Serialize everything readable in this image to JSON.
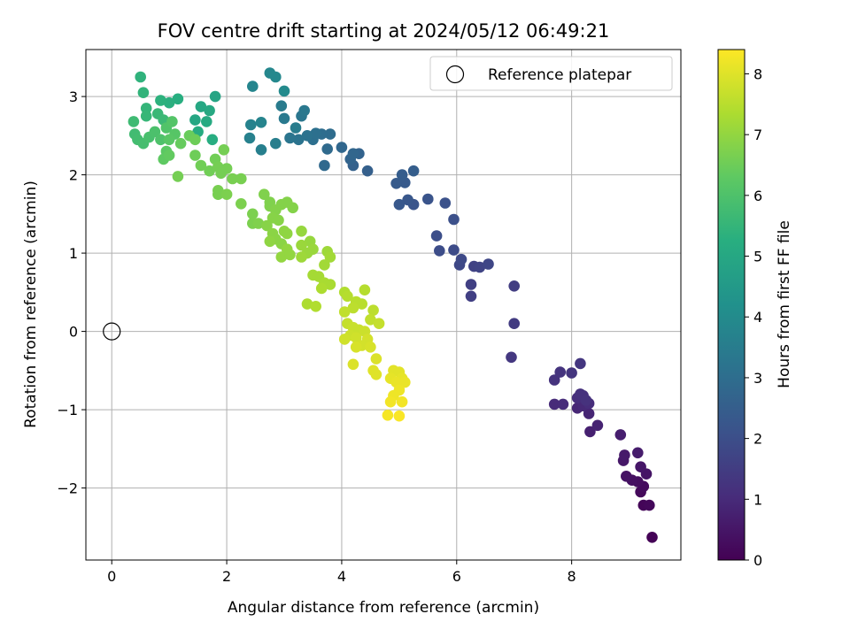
{
  "chart_data": {
    "type": "scatter",
    "title": "FOV centre drift starting at 2024/05/12 06:49:21",
    "xlabel": "Angular distance from reference (arcmin)",
    "ylabel": "Rotation from reference (arcmin)",
    "xlim": [
      -0.45,
      9.9
    ],
    "ylim": [
      -2.92,
      3.6
    ],
    "xticks": [
      0,
      2,
      4,
      6,
      8
    ],
    "yticks": [
      -2,
      -1,
      0,
      1,
      2,
      3
    ],
    "xtick_labels": [
      "0",
      "2",
      "4",
      "6",
      "8"
    ],
    "ytick_labels": [
      "−2",
      "−1",
      "0",
      "1",
      "2",
      "3"
    ],
    "grid": true,
    "legend": {
      "placement": "top-right",
      "entries": [
        {
          "label": "Reference platepar",
          "marker": "open-circle"
        }
      ]
    },
    "reference_point": {
      "x": 0,
      "y": 0,
      "label": "Reference platepar"
    },
    "colorbar": {
      "label": "Hours from first FF file",
      "colormap": "viridis",
      "range": [
        0,
        8.4
      ],
      "ticks": [
        0,
        1,
        2,
        3,
        4,
        5,
        6,
        7,
        8
      ],
      "tick_labels": [
        "0",
        "1",
        "2",
        "3",
        "4",
        "5",
        "6",
        "7",
        "8"
      ]
    },
    "series": [
      {
        "points": [
          [
            9.4,
            -2.63,
            0.05
          ],
          [
            9.25,
            -2.22,
            0.1
          ],
          [
            9.35,
            -2.22,
            0.15
          ],
          [
            9.2,
            -2.05,
            0.2
          ],
          [
            9.25,
            -1.98,
            0.25
          ],
          [
            9.15,
            -1.92,
            0.3
          ],
          [
            9.05,
            -1.9,
            0.35
          ],
          [
            8.95,
            -1.85,
            0.4
          ],
          [
            9.3,
            -1.82,
            0.45
          ],
          [
            9.2,
            -1.73,
            0.5
          ],
          [
            8.9,
            -1.65,
            0.55
          ],
          [
            8.92,
            -1.58,
            0.6
          ],
          [
            9.15,
            -1.55,
            0.65
          ],
          [
            8.85,
            -1.32,
            0.7
          ],
          [
            8.32,
            -1.28,
            0.75
          ],
          [
            8.45,
            -1.2,
            0.8
          ],
          [
            8.3,
            -1.05,
            0.85
          ],
          [
            8.1,
            -0.98,
            0.9
          ],
          [
            8.2,
            -0.95,
            0.95
          ],
          [
            7.7,
            -0.93,
            1.0
          ],
          [
            7.85,
            -0.93,
            1.03
          ],
          [
            8.3,
            -0.92,
            1.06
          ],
          [
            8.1,
            -0.85,
            1.09
          ],
          [
            8.2,
            -0.82,
            1.12
          ],
          [
            8.15,
            -0.8,
            1.15
          ],
          [
            8.25,
            -0.88,
            1.18
          ],
          [
            7.7,
            -0.62,
            1.21
          ],
          [
            7.8,
            -0.52,
            1.24
          ],
          [
            8.0,
            -0.53,
            1.27
          ],
          [
            8.15,
            -0.41,
            1.3
          ],
          [
            6.95,
            -0.33,
            1.35
          ],
          [
            7.0,
            0.1,
            1.45
          ],
          [
            7.0,
            0.58,
            1.5
          ],
          [
            6.25,
            0.45,
            1.55
          ],
          [
            6.25,
            0.6,
            1.6
          ],
          [
            6.3,
            0.83,
            1.65
          ],
          [
            6.4,
            0.82,
            1.7
          ],
          [
            6.55,
            0.86,
            1.75
          ],
          [
            6.05,
            0.85,
            1.8
          ],
          [
            6.08,
            0.92,
            1.85
          ],
          [
            5.95,
            1.04,
            1.9
          ],
          [
            5.7,
            1.03,
            1.95
          ],
          [
            5.65,
            1.22,
            2.0
          ],
          [
            5.95,
            1.43,
            2.05
          ],
          [
            5.8,
            1.64,
            2.1
          ],
          [
            5.5,
            1.69,
            2.15
          ],
          [
            5.25,
            1.62,
            2.2
          ],
          [
            5.15,
            1.68,
            2.25
          ],
          [
            5.0,
            1.62,
            2.3
          ],
          [
            5.1,
            1.9,
            2.35
          ],
          [
            4.95,
            1.89,
            2.4
          ],
          [
            5.05,
            2.0,
            2.45
          ],
          [
            5.25,
            2.05,
            2.5
          ],
          [
            4.45,
            2.05,
            2.55
          ],
          [
            4.2,
            2.12,
            2.6
          ],
          [
            4.3,
            2.27,
            2.65
          ],
          [
            4.15,
            2.2,
            2.7
          ],
          [
            4.2,
            2.27,
            2.75
          ],
          [
            4.0,
            2.35,
            2.8
          ],
          [
            3.7,
            2.12,
            2.85
          ],
          [
            3.75,
            2.33,
            2.9
          ],
          [
            3.8,
            2.52,
            2.95
          ],
          [
            3.65,
            2.52,
            3.0
          ],
          [
            3.5,
            2.45,
            3.05
          ],
          [
            3.55,
            2.53,
            3.1
          ],
          [
            3.4,
            2.5,
            3.15
          ],
          [
            3.25,
            2.45,
            3.2
          ],
          [
            3.1,
            2.47,
            3.25
          ],
          [
            3.3,
            2.75,
            3.3
          ],
          [
            3.35,
            2.82,
            3.35
          ],
          [
            3.0,
            2.72,
            3.4
          ],
          [
            2.95,
            2.88,
            3.45
          ],
          [
            3.2,
            2.6,
            3.5
          ],
          [
            2.85,
            2.4,
            3.55
          ],
          [
            2.6,
            2.32,
            3.6
          ],
          [
            2.4,
            2.47,
            3.65
          ],
          [
            2.42,
            2.64,
            3.7
          ],
          [
            2.6,
            2.67,
            3.75
          ],
          [
            2.45,
            3.13,
            3.8
          ],
          [
            2.75,
            3.3,
            3.85
          ],
          [
            2.85,
            3.25,
            3.9
          ],
          [
            3.0,
            3.07,
            3.95
          ],
          [
            1.8,
            3.0,
            4.9
          ],
          [
            1.45,
            2.7,
            4.95
          ],
          [
            1.55,
            2.87,
            5.0
          ],
          [
            1.7,
            2.82,
            5.05
          ],
          [
            1.65,
            2.68,
            5.1
          ],
          [
            1.5,
            2.55,
            5.15
          ],
          [
            1.75,
            2.45,
            5.2
          ],
          [
            1.15,
            2.97,
            5.25
          ],
          [
            1.0,
            2.92,
            5.3
          ],
          [
            0.85,
            2.95,
            5.35
          ],
          [
            0.5,
            3.25,
            5.4
          ],
          [
            0.55,
            3.05,
            5.45
          ],
          [
            0.6,
            2.85,
            5.5
          ],
          [
            0.6,
            2.75,
            5.55
          ],
          [
            0.8,
            2.78,
            5.6
          ],
          [
            0.9,
            2.7,
            5.65
          ],
          [
            0.38,
            2.68,
            5.7
          ],
          [
            0.4,
            2.52,
            5.75
          ],
          [
            0.45,
            2.45,
            5.8
          ],
          [
            0.55,
            2.4,
            5.85
          ],
          [
            0.65,
            2.48,
            5.9
          ],
          [
            0.75,
            2.55,
            5.95
          ],
          [
            0.85,
            2.45,
            6.0
          ],
          [
            0.95,
            2.6,
            6.05
          ],
          [
            1.05,
            2.68,
            6.1
          ],
          [
            1.1,
            2.52,
            6.15
          ],
          [
            1.0,
            2.45,
            6.2
          ],
          [
            0.95,
            2.3,
            6.25
          ],
          [
            0.9,
            2.2,
            6.3
          ],
          [
            1.0,
            2.25,
            6.35
          ],
          [
            1.2,
            2.4,
            6.4
          ],
          [
            1.35,
            2.5,
            6.45
          ],
          [
            1.45,
            2.45,
            6.5
          ],
          [
            1.45,
            2.25,
            6.5
          ],
          [
            1.55,
            2.12,
            6.55
          ],
          [
            1.7,
            2.05,
            6.55
          ],
          [
            1.8,
            2.2,
            6.55
          ],
          [
            1.85,
            2.1,
            6.6
          ],
          [
            1.95,
            2.32,
            6.6
          ],
          [
            2.0,
            2.08,
            6.6
          ],
          [
            1.9,
            2.02,
            6.6
          ],
          [
            1.15,
            1.98,
            6.6
          ],
          [
            2.1,
            1.95,
            6.65
          ],
          [
            2.25,
            1.95,
            6.65
          ],
          [
            1.85,
            1.8,
            6.65
          ],
          [
            1.85,
            1.75,
            6.65
          ],
          [
            2.0,
            1.75,
            6.7
          ],
          [
            2.25,
            1.63,
            6.7
          ],
          [
            2.45,
            1.5,
            6.7
          ],
          [
            2.45,
            1.38,
            6.7
          ],
          [
            2.55,
            1.38,
            6.75
          ],
          [
            2.65,
            1.75,
            6.75
          ],
          [
            2.75,
            1.65,
            6.75
          ],
          [
            2.75,
            1.6,
            6.75
          ],
          [
            2.85,
            1.55,
            6.8
          ],
          [
            2.95,
            1.62,
            6.8
          ],
          [
            3.05,
            1.65,
            6.8
          ],
          [
            3.15,
            1.58,
            6.8
          ],
          [
            2.8,
            1.45,
            6.85
          ],
          [
            2.9,
            1.42,
            6.85
          ],
          [
            2.7,
            1.35,
            6.85
          ],
          [
            2.8,
            1.25,
            6.9
          ],
          [
            2.85,
            1.18,
            6.9
          ],
          [
            2.95,
            1.12,
            6.9
          ],
          [
            3.0,
            1.28,
            6.95
          ],
          [
            3.05,
            1.25,
            6.95
          ],
          [
            2.75,
            1.15,
            6.95
          ],
          [
            3.05,
            1.05,
            7.0
          ],
          [
            2.95,
            0.95,
            7.0
          ],
          [
            3.1,
            0.98,
            7.0
          ],
          [
            3.3,
            1.28,
            7.05
          ],
          [
            3.45,
            1.15,
            7.05
          ],
          [
            3.3,
            1.1,
            7.1
          ],
          [
            3.5,
            1.05,
            7.1
          ],
          [
            3.4,
            1.0,
            7.1
          ],
          [
            3.3,
            0.95,
            7.15
          ],
          [
            3.75,
            1.02,
            7.15
          ],
          [
            3.8,
            0.95,
            7.2
          ],
          [
            3.7,
            0.85,
            7.2
          ],
          [
            3.5,
            0.72,
            7.25
          ],
          [
            3.6,
            0.7,
            7.25
          ],
          [
            3.7,
            0.62,
            7.3
          ],
          [
            3.8,
            0.6,
            7.3
          ],
          [
            3.65,
            0.55,
            7.35
          ],
          [
            3.4,
            0.35,
            7.35
          ],
          [
            3.55,
            0.32,
            7.4
          ],
          [
            4.05,
            0.5,
            7.4
          ],
          [
            4.1,
            0.45,
            7.45
          ],
          [
            4.4,
            0.53,
            7.45
          ],
          [
            4.25,
            0.38,
            7.5
          ],
          [
            4.35,
            0.35,
            7.5
          ],
          [
            4.2,
            0.3,
            7.55
          ],
          [
            4.55,
            0.27,
            7.55
          ],
          [
            4.05,
            0.25,
            7.6
          ],
          [
            4.5,
            0.15,
            7.6
          ],
          [
            4.65,
            0.1,
            7.65
          ],
          [
            4.1,
            0.1,
            7.65
          ],
          [
            4.2,
            0.05,
            7.7
          ],
          [
            4.3,
            0.02,
            7.7
          ],
          [
            4.4,
            0.0,
            7.75
          ],
          [
            4.15,
            -0.05,
            7.75
          ],
          [
            4.25,
            -0.08,
            7.8
          ],
          [
            4.05,
            -0.1,
            7.8
          ],
          [
            4.45,
            -0.1,
            7.85
          ],
          [
            4.35,
            -0.18,
            7.85
          ],
          [
            4.5,
            -0.2,
            7.9
          ],
          [
            4.25,
            -0.2,
            7.9
          ],
          [
            4.6,
            -0.35,
            7.95
          ],
          [
            4.2,
            -0.42,
            7.95
          ],
          [
            4.55,
            -0.5,
            8.0
          ],
          [
            4.6,
            -0.55,
            8.0
          ],
          [
            4.9,
            -0.5,
            8.05
          ],
          [
            5.0,
            -0.52,
            8.05
          ],
          [
            4.85,
            -0.6,
            8.1
          ],
          [
            5.05,
            -0.6,
            8.1
          ],
          [
            4.95,
            -0.65,
            8.15
          ],
          [
            5.1,
            -0.65,
            8.15
          ],
          [
            5.0,
            -0.75,
            8.2
          ],
          [
            4.9,
            -0.82,
            8.2
          ],
          [
            4.85,
            -0.9,
            8.25
          ],
          [
            5.05,
            -0.9,
            8.25
          ],
          [
            4.8,
            -1.07,
            8.3
          ],
          [
            5.0,
            -1.08,
            8.35
          ]
        ]
      }
    ]
  }
}
